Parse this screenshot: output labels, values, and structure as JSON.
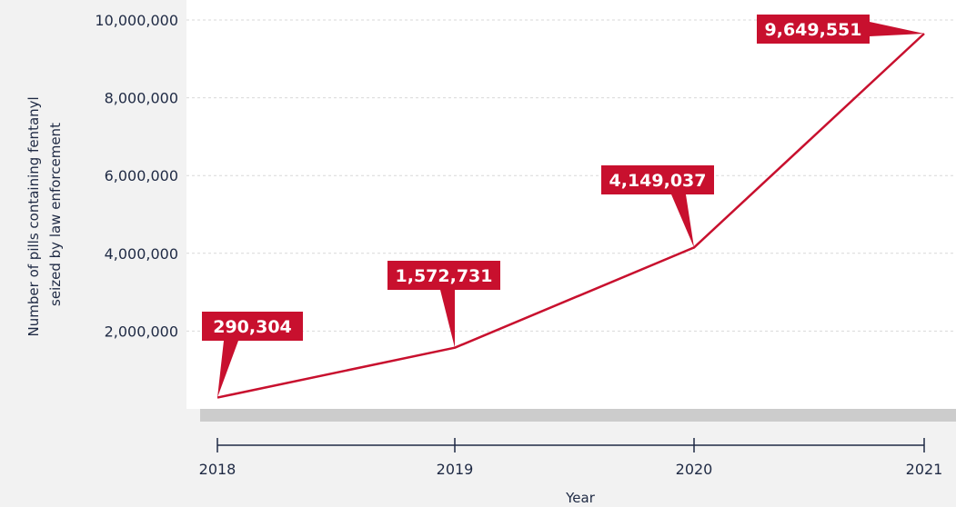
{
  "chart_data": {
    "type": "line",
    "title": "",
    "xlabel": "Year",
    "ylabel_lines": [
      "Number of pills containing fentanyl",
      "seized by law enforcement"
    ],
    "x": [
      "2018",
      "2019",
      "2020",
      "2021"
    ],
    "series": [
      {
        "values": [
          290304,
          1572731,
          4149037,
          9649551
        ]
      }
    ],
    "data_labels": [
      "290,304",
      "1,572,731",
      "4,149,037",
      "9,649,551"
    ],
    "ylim": [
      0,
      10000000
    ],
    "yticks": [
      2000000,
      4000000,
      6000000,
      8000000,
      10000000
    ],
    "ytick_labels": [
      "2,000,000",
      "4,000,000",
      "6,000,000",
      "8,000,000",
      "10,000,000"
    ],
    "grid": "horizontal dashed",
    "colors": {
      "line": "#c8102e",
      "callout": "#c8102e",
      "plot_bg": "#ffffff",
      "page_bg": "#f2f2f2",
      "axis_bar": "#cccccc",
      "text": "#1f2a44"
    }
  }
}
